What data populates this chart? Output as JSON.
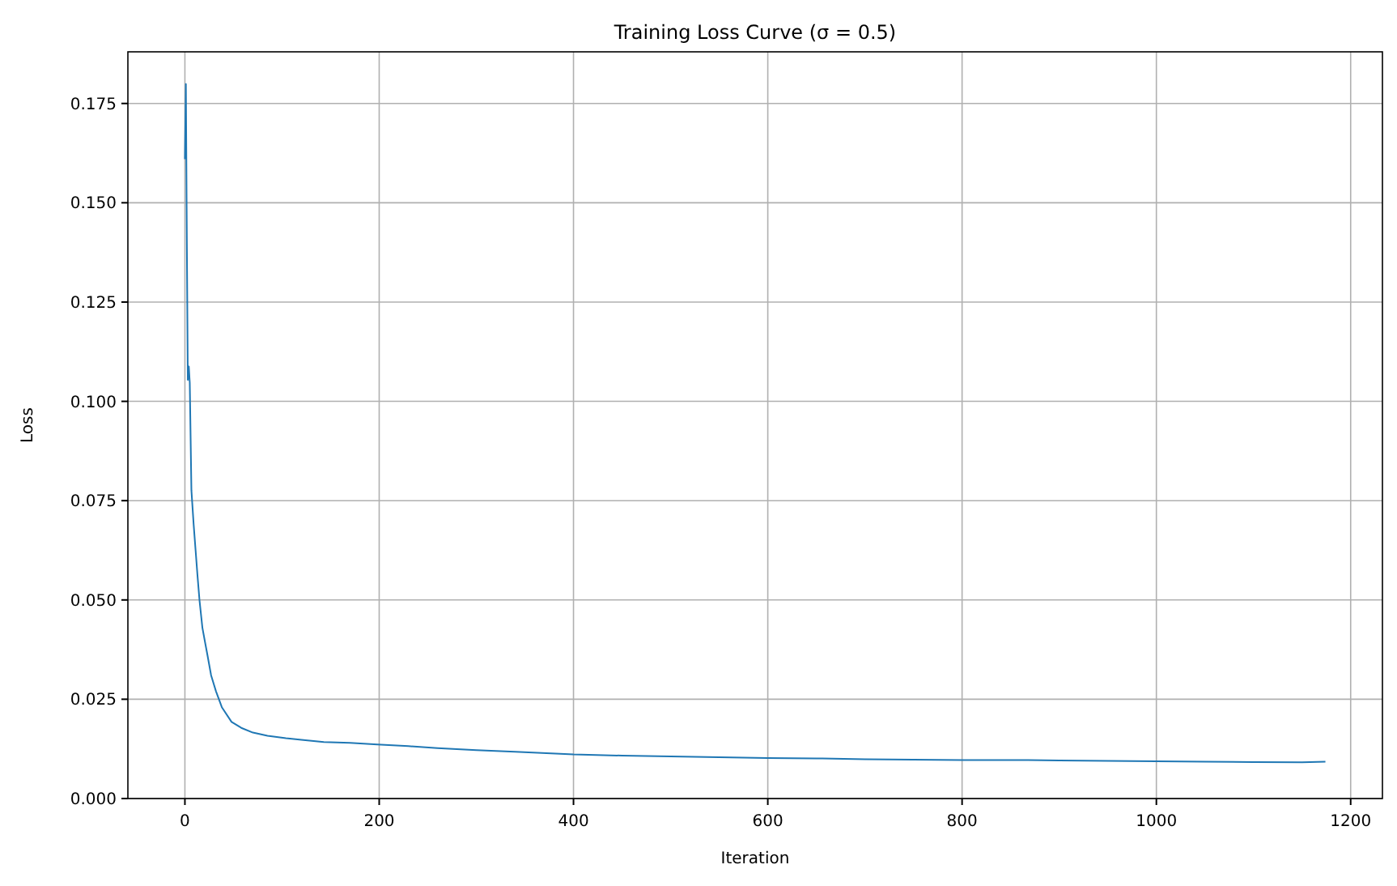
{
  "chart_data": {
    "type": "line",
    "title": "Training Loss Curve (σ = 0.5)",
    "xlabel": "Iteration",
    "ylabel": "Loss",
    "xlim": [
      -58.7,
      1232.7
    ],
    "ylim": [
      0,
      0.188
    ],
    "xticks": [
      0,
      200,
      400,
      600,
      800,
      1000,
      1200
    ],
    "yticks": [
      {
        "value": 0,
        "label": "0.000"
      },
      {
        "value": 0.025,
        "label": "0.025"
      },
      {
        "value": 0.05,
        "label": "0.050"
      },
      {
        "value": 0.075,
        "label": "0.075"
      },
      {
        "value": 0.1,
        "label": "0.100"
      },
      {
        "value": 0.125,
        "label": "0.125"
      },
      {
        "value": 0.15,
        "label": "0.150"
      },
      {
        "value": 0.175,
        "label": "0.175"
      }
    ],
    "grid": true,
    "marker": "none",
    "line_style": "solid",
    "series": [
      {
        "color": "#1f77b4",
        "x": [
          0,
          1,
          2,
          3,
          4,
          5,
          6.7,
          9,
          11,
          13,
          15,
          18,
          21,
          23,
          27,
          32,
          38,
          48,
          58,
          70,
          85,
          104,
          120,
          143,
          170,
          198,
          230,
          260,
          300,
          340,
          400,
          450,
          500,
          550,
          600,
          650,
          700,
          750,
          800,
          850,
          900,
          950,
          1000,
          1050,
          1100,
          1150,
          1174
        ],
        "values": [
          0.161,
          0.1799,
          0.14,
          0.1054,
          0.1088,
          0.1047,
          0.0776,
          0.069,
          0.0625,
          0.056,
          0.05,
          0.043,
          0.039,
          0.0364,
          0.031,
          0.027,
          0.023,
          0.0193,
          0.0178,
          0.0166,
          0.0158,
          0.0152,
          0.0148,
          0.0142,
          0.014,
          0.0136,
          0.0132,
          0.0127,
          0.0122,
          0.0118,
          0.0111,
          0.0108,
          0.0106,
          0.0104,
          0.0102,
          0.0101,
          0.0099,
          0.0098,
          0.0097,
          0.0097,
          0.0096,
          0.0095,
          0.0094,
          0.0093,
          0.0092,
          0.0091,
          0.0093
        ]
      }
    ]
  }
}
